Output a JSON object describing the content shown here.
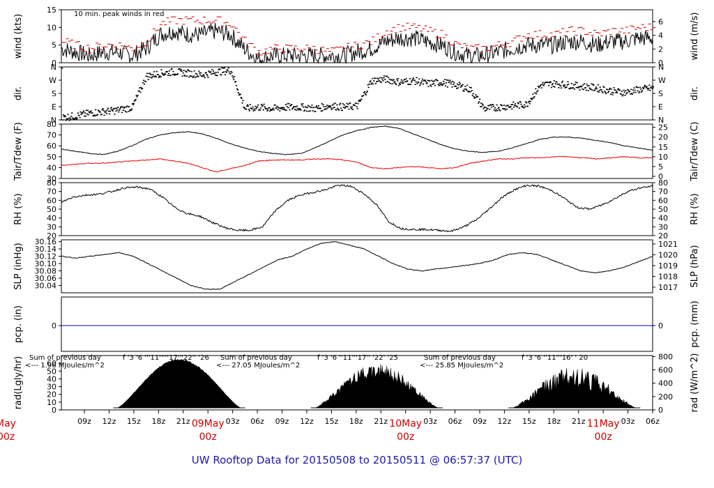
{
  "title": "UW Rooftop Data for 20150508  to  20150511 @ 06:57:37  (UTC)",
  "colors": {
    "wind": "#000000",
    "peak": "#cc0000",
    "tdew": "#ee0000",
    "pcp": "#0000cc",
    "annot": "#9900cc",
    "date": "#cc0000",
    "title": "#1a1aaa"
  },
  "chart_data": [
    {
      "type": "line",
      "panel": "wind",
      "ylabel_left": "wind (kts)",
      "ylabel_right": "wind (m/s)",
      "ylim": [
        0,
        15
      ],
      "y_ticks_left": [
        "0",
        "5",
        "10",
        "15"
      ],
      "y_ticks_right": [
        "0",
        "2",
        "4",
        "6"
      ],
      "annotation": "10 min. peak winds in red",
      "series": [
        {
          "values": [
            4,
            3,
            2,
            3,
            3,
            2,
            4,
            8,
            9,
            8,
            8,
            9,
            8,
            4,
            1,
            2,
            2,
            2,
            2,
            2,
            2,
            3,
            4,
            6,
            7,
            7,
            6,
            5,
            3,
            2,
            2,
            3,
            4,
            5,
            5,
            5,
            6,
            6,
            5,
            6,
            6,
            7,
            7
          ]
        },
        {
          "values": [
            6,
            5,
            4,
            5,
            5,
            4,
            6,
            11,
            12,
            12,
            12,
            12,
            11,
            6,
            3,
            4,
            4,
            4,
            4,
            3,
            4,
            5,
            6,
            9,
            10,
            10,
            9,
            8,
            5,
            4,
            4,
            5,
            6,
            8,
            8,
            8,
            9,
            9,
            8,
            9,
            9,
            10,
            10
          ]
        }
      ]
    },
    {
      "type": "scatter",
      "panel": "dir",
      "ylabel_left": "dir.",
      "ylabel_right": "dir.",
      "y_ticks_left": [
        "N",
        "W",
        "S",
        "E",
        "N"
      ],
      "y_ticks_right": [
        "N",
        "W",
        "S",
        "E",
        "N"
      ],
      "values_deg": [
        20,
        30,
        50,
        60,
        70,
        90,
        300,
        320,
        330,
        320,
        310,
        330,
        340,
        80,
        90,
        80,
        90,
        90,
        80,
        100,
        90,
        100,
        270,
        280,
        260,
        270,
        250,
        260,
        240,
        210,
        80,
        90,
        100,
        110,
        240,
        250,
        240,
        230,
        220,
        200,
        190,
        210,
        220
      ]
    },
    {
      "type": "line",
      "panel": "temp",
      "ylabel_left": "Tair/Tdew (F)",
      "ylabel_right": "Tair/Tdew (C)",
      "ylim": [
        30,
        80
      ],
      "y_ticks_left": [
        "30",
        "40",
        "50",
        "60",
        "70",
        "80"
      ],
      "y_ticks_right": [
        "0",
        "5",
        "10",
        "15",
        "20",
        "25"
      ],
      "series": [
        {
          "values": [
            57,
            55,
            53,
            52,
            55,
            60,
            66,
            70,
            72,
            73,
            71,
            67,
            62,
            58,
            55,
            53,
            52,
            53,
            58,
            64,
            70,
            74,
            77,
            78,
            76,
            71,
            66,
            61,
            57,
            55,
            54,
            55,
            58,
            62,
            66,
            68,
            68,
            67,
            65,
            63,
            60,
            58,
            56
          ]
        },
        {
          "values": [
            42,
            43,
            44,
            44,
            45,
            46,
            47,
            48,
            46,
            44,
            40,
            36,
            39,
            42,
            46,
            47,
            47,
            47,
            48,
            48,
            47,
            45,
            40,
            39,
            40,
            41,
            40,
            39,
            40,
            44,
            46,
            48,
            48,
            49,
            49,
            50,
            50,
            49,
            48,
            49,
            50,
            49,
            49
          ]
        }
      ]
    },
    {
      "type": "line",
      "panel": "rh",
      "ylabel_left": "RH (%)",
      "ylabel_right": "RH (%)",
      "ylim": [
        20,
        80
      ],
      "y_ticks_left": [
        "20",
        "30",
        "40",
        "50",
        "60",
        "70",
        "80"
      ],
      "y_ticks_right": [
        "20",
        "30",
        "40",
        "50",
        "60",
        "70",
        "80"
      ],
      "values": [
        58,
        64,
        66,
        67,
        70,
        74,
        75,
        73,
        64,
        52,
        45,
        42,
        35,
        29,
        26,
        26,
        30,
        48,
        60,
        66,
        69,
        72,
        77,
        76,
        68,
        56,
        36,
        28,
        27,
        27,
        26,
        25,
        30,
        38,
        50,
        63,
        72,
        77,
        76,
        71,
        62,
        52,
        50,
        55,
        62,
        70,
        74,
        76
      ]
    },
    {
      "type": "line",
      "panel": "slp",
      "ylabel_left": "SLP (inHg)",
      "ylabel_right": "SLP (hPa)",
      "ylim": [
        30.02,
        30.16
      ],
      "y_ticks_left": [
        "30.04",
        "30.06",
        "30.08",
        "30.10",
        "30.12",
        "30.14",
        "30.16"
      ],
      "y_ticks_right": [
        "1017",
        "1018",
        "1019",
        "1020",
        "1021"
      ],
      "values": [
        30.12,
        30.115,
        30.12,
        30.125,
        30.13,
        30.12,
        30.1,
        30.08,
        30.06,
        30.04,
        30.03,
        30.03,
        30.05,
        30.07,
        30.09,
        30.11,
        30.12,
        30.14,
        30.155,
        30.16,
        30.15,
        30.14,
        30.12,
        30.1,
        30.085,
        30.08,
        30.085,
        30.09,
        30.095,
        30.1,
        30.11,
        30.125,
        30.13,
        30.125,
        30.11,
        30.095,
        30.08,
        30.075,
        30.08,
        30.09,
        30.105,
        30.12
      ]
    },
    {
      "type": "line",
      "panel": "pcp",
      "ylabel_left": "pcp. (in)",
      "ylabel_right": "pcp. (mm)",
      "y_ticks_left": [
        "0"
      ],
      "y_ticks_right": [
        "0"
      ],
      "values": [
        0,
        0
      ]
    },
    {
      "type": "area",
      "panel": "rad",
      "ylabel_left": "rad(Lgly/hr)",
      "ylabel_right": "rad (W/m^2)",
      "ylim": [
        0,
        70
      ],
      "y_ticks_left": [
        "0",
        "10",
        "20",
        "30",
        "40",
        "50",
        "60"
      ],
      "y_ticks_right": [
        "0",
        "200",
        "400",
        "600",
        "800"
      ],
      "days": [
        {
          "start_h": 13,
          "end_h": 28,
          "peak": 70,
          "rough": 0.03
        },
        {
          "start_h": 37,
          "end_h": 52,
          "peak": 64,
          "rough": 0.35
        },
        {
          "start_h": 61,
          "end_h": 76,
          "peak": 60,
          "rough": 0.55
        }
      ],
      "annotations": [
        {
          "line1": "Sum of previous day",
          "line2": "<--- 1.96 MJoules/m^2",
          "hours": "f   '3  '6  '''11'''''17'''22'' '26"
        },
        {
          "line1": "Sum of previous day",
          "line2": "<--- 27.05 MJoules/m^2",
          "hours": "f   '3  '6  ''11'''17'' '22'  '25"
        },
        {
          "line1": "Sum of previous day",
          "line2": "<--- 25.85 MJoules/m^2",
          "hours": "f   '3  '6  ''11'''16'  '  20"
        }
      ]
    }
  ],
  "x_axis": {
    "ticks": [
      "09z",
      "12z",
      "15z",
      "18z",
      "21z",
      "03z",
      "06z",
      "09z",
      "12z",
      "15z",
      "18z",
      "21z",
      "03z",
      "06z",
      "09z",
      "12z",
      "15z",
      "18z",
      "21z",
      "03z",
      "06z"
    ],
    "dates": [
      {
        "day": "May",
        "z": "00z"
      },
      {
        "day": "09May",
        "z": "00z"
      },
      {
        "day": "10May",
        "z": "00z"
      },
      {
        "day": "11May",
        "z": "00z"
      }
    ]
  }
}
